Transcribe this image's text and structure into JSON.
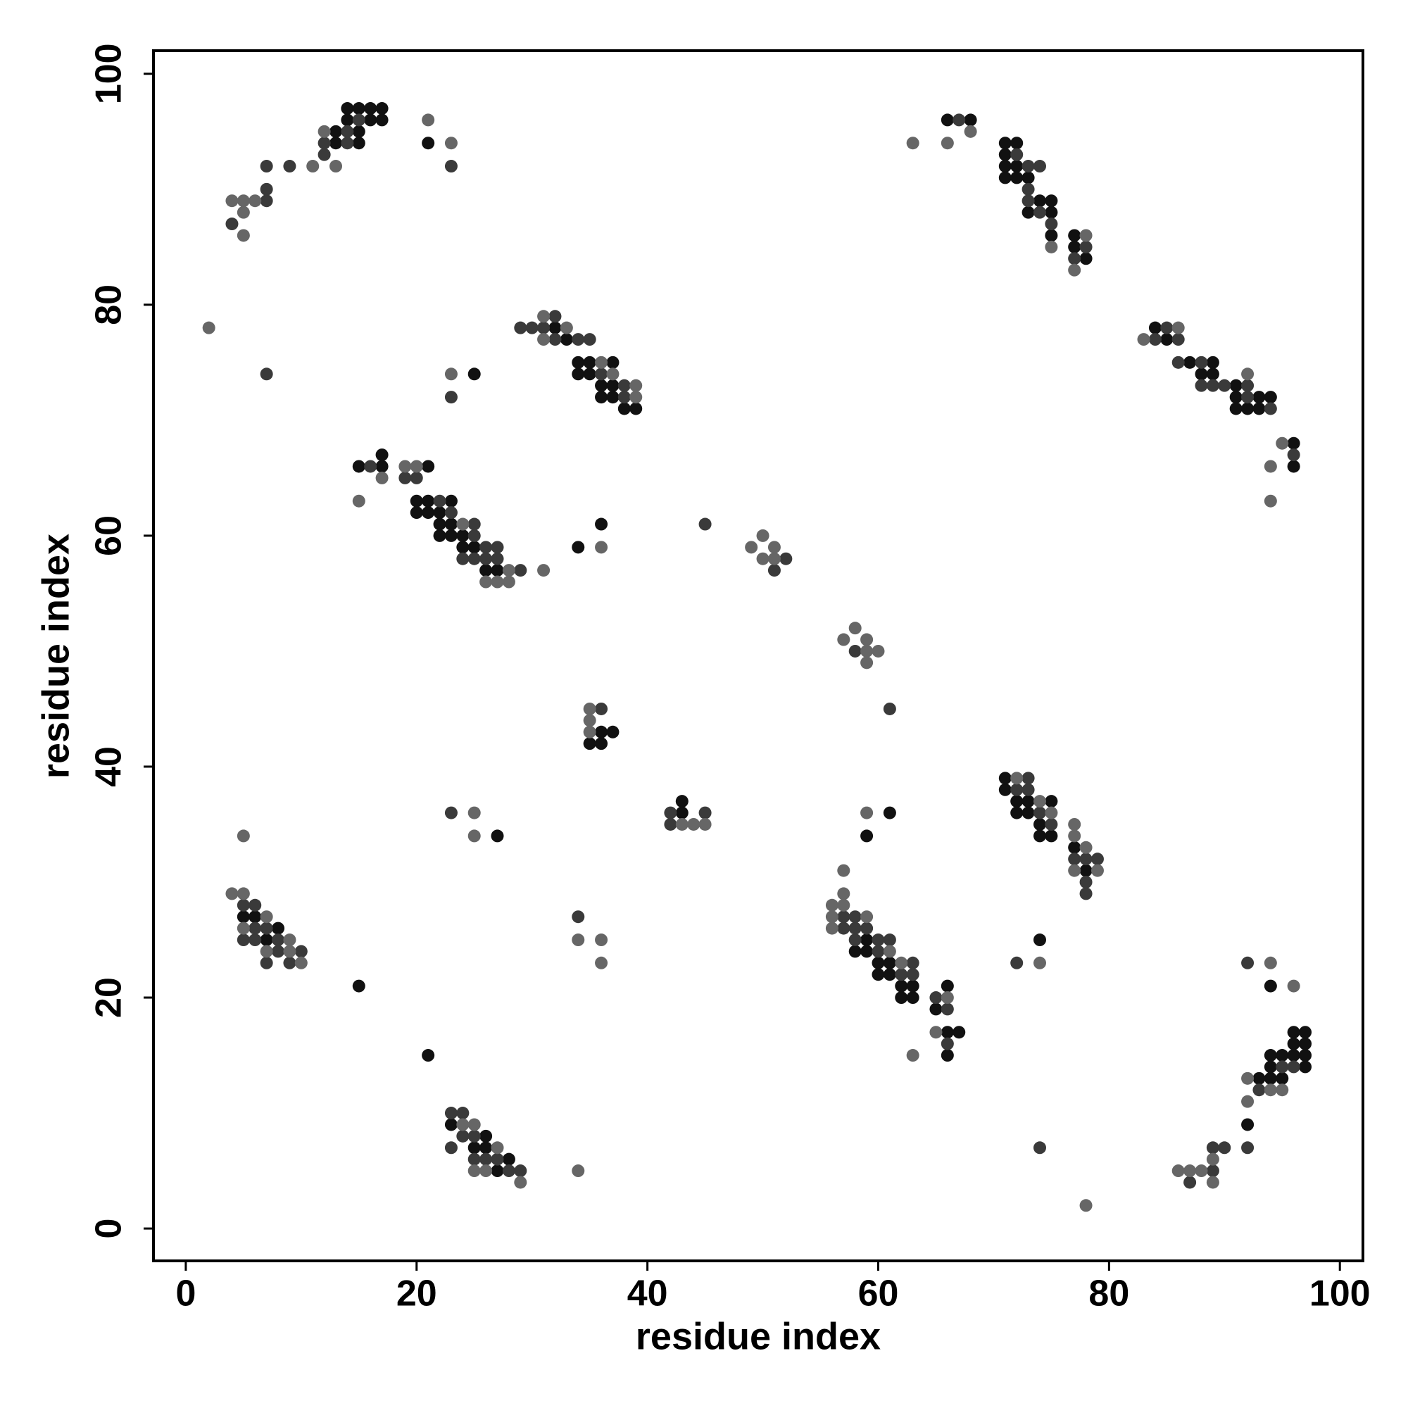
{
  "chart_data": {
    "type": "scatter",
    "xlabel": "residue index",
    "ylabel": "residue index",
    "xlim": [
      -2.8,
      102
    ],
    "ylim": [
      -2.8,
      102
    ],
    "xticks": [
      0,
      20,
      40,
      60,
      80,
      100
    ],
    "yticks": [
      0,
      20,
      40,
      60,
      80,
      100
    ],
    "series": [
      {
        "color": "#111111",
        "x": [
          13,
          13,
          14,
          14,
          15,
          15,
          15,
          16,
          16,
          17,
          17,
          21,
          66,
          68,
          71,
          71,
          71,
          71,
          72,
          72,
          72,
          73,
          73,
          74,
          75,
          75,
          75,
          77,
          77,
          78,
          32,
          33,
          34,
          34,
          35,
          35,
          36,
          36,
          37,
          37,
          37,
          38,
          39,
          25,
          84,
          85,
          87,
          88,
          89,
          89,
          91,
          91,
          91,
          92,
          93,
          93,
          94,
          96,
          96,
          15,
          17,
          17,
          20,
          20,
          21,
          21,
          21,
          22,
          22,
          22,
          23,
          23,
          23,
          24,
          24,
          25,
          26,
          27,
          34,
          36,
          35,
          36,
          36,
          37,
          43,
          43,
          27,
          59,
          61,
          71,
          71,
          72,
          72,
          73,
          73,
          74,
          74,
          75,
          75,
          77,
          78,
          5,
          6,
          7,
          8,
          15,
          21,
          58,
          59,
          59,
          60,
          60,
          61,
          61,
          62,
          62,
          63,
          63,
          65,
          66,
          66,
          66,
          67,
          74,
          23,
          25,
          26,
          26,
          27,
          28,
          92,
          93,
          94,
          94,
          94,
          94,
          95,
          95,
          96,
          96,
          96,
          97,
          97,
          97,
          97
        ],
        "values": [
          94,
          95,
          96,
          97,
          94,
          95,
          97,
          96,
          97,
          96,
          97,
          94,
          96,
          96,
          91,
          92,
          93,
          94,
          91,
          92,
          94,
          88,
          91,
          89,
          86,
          88,
          89,
          85,
          86,
          84,
          78,
          77,
          74,
          75,
          74,
          75,
          72,
          73,
          72,
          73,
          75,
          71,
          71,
          74,
          78,
          77,
          75,
          74,
          74,
          75,
          71,
          72,
          73,
          71,
          71,
          72,
          72,
          66,
          68,
          66,
          66,
          67,
          62,
          63,
          62,
          63,
          66,
          60,
          61,
          62,
          60,
          61,
          63,
          59,
          60,
          59,
          57,
          57,
          59,
          61,
          42,
          42,
          43,
          43,
          36,
          37,
          34,
          34,
          36,
          38,
          39,
          36,
          37,
          36,
          37,
          34,
          35,
          34,
          37,
          33,
          31,
          27,
          27,
          25,
          26,
          21,
          15,
          24,
          24,
          25,
          22,
          23,
          22,
          23,
          20,
          21,
          20,
          21,
          19,
          15,
          17,
          21,
          17,
          25,
          9,
          7,
          7,
          8,
          5,
          6,
          9,
          13,
          13,
          14,
          15,
          21,
          13,
          15,
          15,
          16,
          17,
          14,
          15,
          16,
          17
        ]
      },
      {
        "color": "#3a3a3a",
        "x": [
          4,
          7,
          7,
          7,
          9,
          12,
          12,
          14,
          14,
          15,
          23,
          7,
          67,
          72,
          73,
          73,
          73,
          74,
          74,
          75,
          77,
          78,
          29,
          30,
          31,
          32,
          32,
          34,
          35,
          36,
          38,
          38,
          23,
          84,
          85,
          86,
          86,
          88,
          88,
          89,
          90,
          92,
          92,
          94,
          96,
          16,
          19,
          20,
          22,
          23,
          24,
          25,
          25,
          25,
          26,
          26,
          27,
          27,
          29,
          45,
          51,
          52,
          58,
          61,
          36,
          42,
          42,
          45,
          23,
          72,
          73,
          73,
          74,
          75,
          77,
          78,
          78,
          78,
          79,
          5,
          5,
          6,
          6,
          6,
          7,
          7,
          8,
          8,
          9,
          10,
          34,
          57,
          57,
          58,
          58,
          58,
          59,
          60,
          60,
          61,
          62,
          63,
          63,
          65,
          66,
          66,
          72,
          74,
          23,
          23,
          24,
          24,
          25,
          25,
          26,
          27,
          28,
          29,
          87,
          89,
          89,
          90,
          92,
          92,
          93,
          95,
          96
        ],
        "values": [
          87,
          89,
          90,
          92,
          92,
          93,
          94,
          94,
          95,
          96,
          92,
          74,
          96,
          93,
          89,
          90,
          92,
          88,
          92,
          87,
          84,
          85,
          78,
          78,
          78,
          77,
          79,
          77,
          77,
          74,
          72,
          73,
          72,
          77,
          78,
          75,
          77,
          73,
          75,
          73,
          73,
          72,
          73,
          71,
          67,
          66,
          65,
          65,
          63,
          62,
          58,
          58,
          60,
          61,
          58,
          59,
          58,
          59,
          57,
          61,
          57,
          58,
          50,
          45,
          45,
          35,
          36,
          36,
          36,
          38,
          38,
          39,
          36,
          35,
          32,
          29,
          30,
          32,
          32,
          25,
          28,
          25,
          26,
          28,
          23,
          26,
          24,
          25,
          23,
          24,
          27,
          26,
          27,
          25,
          26,
          27,
          26,
          24,
          25,
          25,
          22,
          22,
          23,
          20,
          16,
          19,
          23,
          7,
          7,
          10,
          8,
          10,
          6,
          8,
          6,
          6,
          5,
          5,
          4,
          5,
          7,
          7,
          7,
          23,
          12,
          14,
          14
        ]
      },
      {
        "color": "#666666",
        "x": [
          2,
          4,
          5,
          5,
          5,
          6,
          11,
          12,
          13,
          21,
          23,
          63,
          66,
          68,
          75,
          77,
          78,
          31,
          31,
          33,
          36,
          37,
          39,
          39,
          23,
          83,
          86,
          92,
          94,
          94,
          95,
          15,
          17,
          19,
          20,
          24,
          26,
          27,
          28,
          28,
          31,
          36,
          49,
          50,
          50,
          51,
          51,
          57,
          58,
          59,
          59,
          59,
          60,
          35,
          35,
          35,
          43,
          44,
          45,
          5,
          25,
          25,
          59,
          72,
          74,
          75,
          77,
          77,
          77,
          78,
          79,
          4,
          5,
          5,
          7,
          7,
          9,
          9,
          10,
          34,
          36,
          36,
          56,
          56,
          56,
          57,
          57,
          57,
          59,
          61,
          62,
          63,
          65,
          66,
          74,
          24,
          25,
          25,
          26,
          27,
          29,
          34,
          78,
          86,
          87,
          88,
          89,
          89,
          92,
          92,
          94,
          94,
          95,
          96
        ],
        "values": [
          78,
          89,
          86,
          88,
          89,
          89,
          92,
          95,
          92,
          96,
          94,
          94,
          94,
          95,
          85,
          83,
          86,
          77,
          79,
          78,
          75,
          74,
          72,
          73,
          74,
          77,
          78,
          74,
          66,
          63,
          68,
          63,
          65,
          66,
          66,
          61,
          56,
          56,
          56,
          57,
          57,
          59,
          59,
          58,
          60,
          58,
          59,
          51,
          52,
          49,
          50,
          51,
          50,
          43,
          44,
          45,
          35,
          35,
          35,
          34,
          34,
          36,
          36,
          39,
          37,
          36,
          31,
          34,
          35,
          33,
          31,
          29,
          26,
          29,
          24,
          27,
          24,
          25,
          23,
          25,
          23,
          25,
          26,
          27,
          28,
          28,
          29,
          31,
          27,
          24,
          23,
          15,
          17,
          20,
          23,
          9,
          5,
          9,
          5,
          7,
          4,
          5,
          2,
          5,
          5,
          5,
          4,
          6,
          11,
          13,
          12,
          23,
          12,
          21
        ]
      }
    ]
  }
}
